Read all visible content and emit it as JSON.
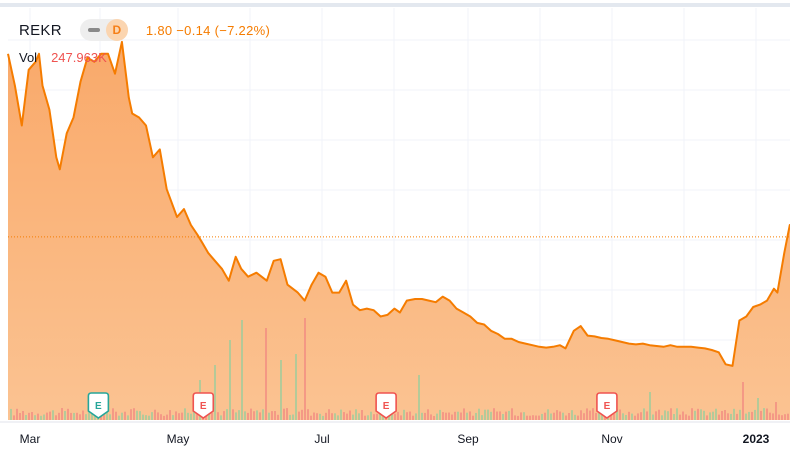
{
  "header": {
    "symbol": "REKR",
    "interval": "D",
    "quote": "1.80 −0.14 (−7.22%)",
    "volume_label": "Vol",
    "volume_value": "247.963K"
  },
  "colors": {
    "line": "#f57c00",
    "area_top": "#f9a96a",
    "area_bottom": "#fbc392",
    "volume_down": "#f28b82",
    "volume_up": "#9ccc9c",
    "reference_line": "#f57c00",
    "earnings_past": "#26a69a",
    "earnings_future": "#ef5350"
  },
  "chart_data": {
    "type": "area",
    "series": [
      {
        "values": [
          [
            0.0,
            4.1
          ],
          [
            0.01,
            3.7
          ],
          [
            0.02,
            3.2
          ],
          [
            0.03,
            3.9
          ],
          [
            0.04,
            4.0
          ],
          [
            0.045,
            4.1
          ],
          [
            0.05,
            3.7
          ],
          [
            0.06,
            3.4
          ],
          [
            0.07,
            2.8
          ],
          [
            0.075,
            2.65
          ],
          [
            0.085,
            3.1
          ],
          [
            0.095,
            3.3
          ],
          [
            0.105,
            3.75
          ],
          [
            0.115,
            4.05
          ],
          [
            0.125,
            4.0
          ],
          [
            0.135,
            4.1
          ],
          [
            0.145,
            4.1
          ],
          [
            0.155,
            3.85
          ],
          [
            0.165,
            4.25
          ],
          [
            0.175,
            3.55
          ],
          [
            0.18,
            3.35
          ],
          [
            0.19,
            3.3
          ],
          [
            0.2,
            3.2
          ],
          [
            0.21,
            2.8
          ],
          [
            0.22,
            2.9
          ],
          [
            0.23,
            2.4
          ],
          [
            0.245,
            2.05
          ],
          [
            0.255,
            2.15
          ],
          [
            0.265,
            1.95
          ],
          [
            0.275,
            1.82
          ],
          [
            0.282,
            1.72
          ],
          [
            0.29,
            1.6
          ],
          [
            0.295,
            1.55
          ],
          [
            0.305,
            1.45
          ],
          [
            0.31,
            1.4
          ],
          [
            0.32,
            1.25
          ],
          [
            0.33,
            1.55
          ],
          [
            0.338,
            1.4
          ],
          [
            0.348,
            1.3
          ],
          [
            0.36,
            1.35
          ],
          [
            0.375,
            1.25
          ],
          [
            0.385,
            1.5
          ],
          [
            0.395,
            1.52
          ],
          [
            0.405,
            1.2
          ],
          [
            0.42,
            1.1
          ],
          [
            0.43,
            1.0
          ],
          [
            0.44,
            1.2
          ],
          [
            0.45,
            1.35
          ],
          [
            0.46,
            1.3
          ],
          [
            0.47,
            1.1
          ],
          [
            0.48,
            1.1
          ],
          [
            0.49,
            1.25
          ],
          [
            0.5,
            0.95
          ],
          [
            0.51,
            0.88
          ],
          [
            0.52,
            0.9
          ],
          [
            0.53,
            0.88
          ],
          [
            0.54,
            0.8
          ],
          [
            0.55,
            0.82
          ],
          [
            0.56,
            0.9
          ],
          [
            0.568,
            0.85
          ],
          [
            0.578,
            1.0
          ],
          [
            0.59,
            1.02
          ],
          [
            0.6,
            1.02
          ],
          [
            0.61,
            1.0
          ],
          [
            0.62,
            0.98
          ],
          [
            0.63,
            1.05
          ],
          [
            0.64,
            1.0
          ],
          [
            0.65,
            0.9
          ],
          [
            0.66,
            0.85
          ],
          [
            0.67,
            0.8
          ],
          [
            0.68,
            0.72
          ],
          [
            0.69,
            0.7
          ],
          [
            0.7,
            0.62
          ],
          [
            0.71,
            0.58
          ],
          [
            0.72,
            0.52
          ],
          [
            0.73,
            0.52
          ],
          [
            0.74,
            0.48
          ],
          [
            0.75,
            0.46
          ],
          [
            0.76,
            0.44
          ],
          [
            0.77,
            0.42
          ],
          [
            0.78,
            0.41
          ],
          [
            0.79,
            0.42
          ],
          [
            0.8,
            0.44
          ],
          [
            0.808,
            0.4
          ],
          [
            0.82,
            0.62
          ],
          [
            0.83,
            0.68
          ],
          [
            0.84,
            0.56
          ],
          [
            0.85,
            0.55
          ],
          [
            0.86,
            0.53
          ],
          [
            0.87,
            0.52
          ],
          [
            0.88,
            0.5
          ],
          [
            0.89,
            0.48
          ],
          [
            0.9,
            0.46
          ],
          [
            0.91,
            0.45
          ],
          [
            0.92,
            0.46
          ],
          [
            0.93,
            0.44
          ],
          [
            0.94,
            0.43
          ],
          [
            0.95,
            0.42
          ],
          [
            0.96,
            0.44
          ],
          [
            0.97,
            0.42
          ],
          [
            0.98,
            0.42
          ],
          [
            0.99,
            0.42
          ],
          [
            1.0,
            0.41
          ],
          [
            1.01,
            0.4
          ],
          [
            1.02,
            0.38
          ],
          [
            1.03,
            0.35
          ],
          [
            1.04,
            0.2
          ],
          [
            1.05,
            0.18
          ],
          [
            1.06,
            0.75
          ],
          [
            1.07,
            0.8
          ],
          [
            1.08,
            0.92
          ],
          [
            1.09,
            0.95
          ],
          [
            1.1,
            1.0
          ],
          [
            1.11,
            1.15
          ],
          [
            1.115,
            1.1
          ],
          [
            1.125,
            1.6
          ],
          [
            1.133,
            1.95
          ],
          [
            1.14,
            1.8
          ]
        ]
      }
    ],
    "x_ticks": [
      "Mar",
      "May",
      "Jul",
      "Sep",
      "Nov",
      "2023"
    ],
    "earnings_events": [
      {
        "label": "E",
        "x": 0.131,
        "kind": "past"
      },
      {
        "label": "E",
        "x": 0.283,
        "kind": "future"
      },
      {
        "label": "E",
        "x": 0.548,
        "kind": "future"
      },
      {
        "label": "E",
        "x": 0.868,
        "kind": "future"
      }
    ],
    "last_value": 1.8,
    "ylim": [
      -0.5,
      4.5
    ],
    "grid": true,
    "legend": "top-left"
  }
}
